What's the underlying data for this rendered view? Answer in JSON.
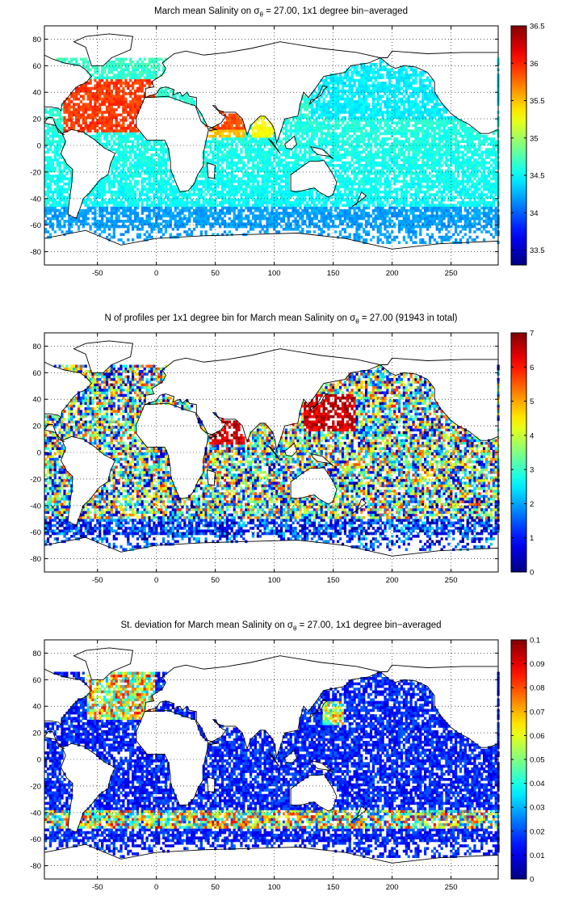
{
  "panels": [
    {
      "title_pre": "March mean Salinity on σ",
      "title_sub": "θ",
      "title_post": " = 27.00, 1x1 degree bin−averaged",
      "colorbar": {
        "min": 33.3,
        "max": 36.5,
        "ticks": [
          "33.5",
          "34",
          "34.5",
          "35",
          "35.5",
          "36",
          "36.5"
        ],
        "tick_values": [
          33.5,
          34,
          34.5,
          35,
          35.5,
          36,
          36.5
        ]
      }
    },
    {
      "title_pre": "N of profiles per 1x1 degree bin for March mean Salinity on σ",
      "title_sub": "θ",
      "title_post": " = 27.00 (91943 in total)",
      "colorbar": {
        "min": 0,
        "max": 7,
        "ticks": [
          "0",
          "1",
          "2",
          "3",
          "4",
          "5",
          "6",
          "7"
        ],
        "tick_values": [
          0,
          1,
          2,
          3,
          4,
          5,
          6,
          7
        ]
      }
    },
    {
      "title_pre": "St. deviation for March mean Salinity on σ",
      "title_sub": "θ",
      "title_post": " = 27.00, 1x1 degree bin−averaged",
      "colorbar": {
        "min": 0,
        "max": 0.1,
        "ticks": [
          "0",
          "0.01",
          "0.02",
          "0.03",
          "0.04",
          "0.05",
          "0.06",
          "0.07",
          "0.08",
          "0.09",
          "0.1"
        ],
        "tick_values": [
          0,
          0.01,
          0.02,
          0.03,
          0.04,
          0.05,
          0.06,
          0.07,
          0.08,
          0.09,
          0.1
        ]
      }
    }
  ],
  "map_axes": {
    "x_ticks": [
      "-50",
      "0",
      "50",
      "100",
      "150",
      "200",
      "250"
    ],
    "x_tick_values": [
      -50,
      0,
      50,
      100,
      150,
      200,
      250
    ],
    "y_ticks": [
      "80",
      "60",
      "40",
      "20",
      "0",
      "-20",
      "-40",
      "-60",
      "-80"
    ],
    "y_tick_values": [
      80,
      60,
      40,
      20,
      0,
      -20,
      -40,
      -60,
      -80
    ],
    "xlim": [
      -95,
      290
    ],
    "ylim": [
      -90,
      90
    ],
    "grid": "dotted"
  },
  "colormap": "jet"
}
